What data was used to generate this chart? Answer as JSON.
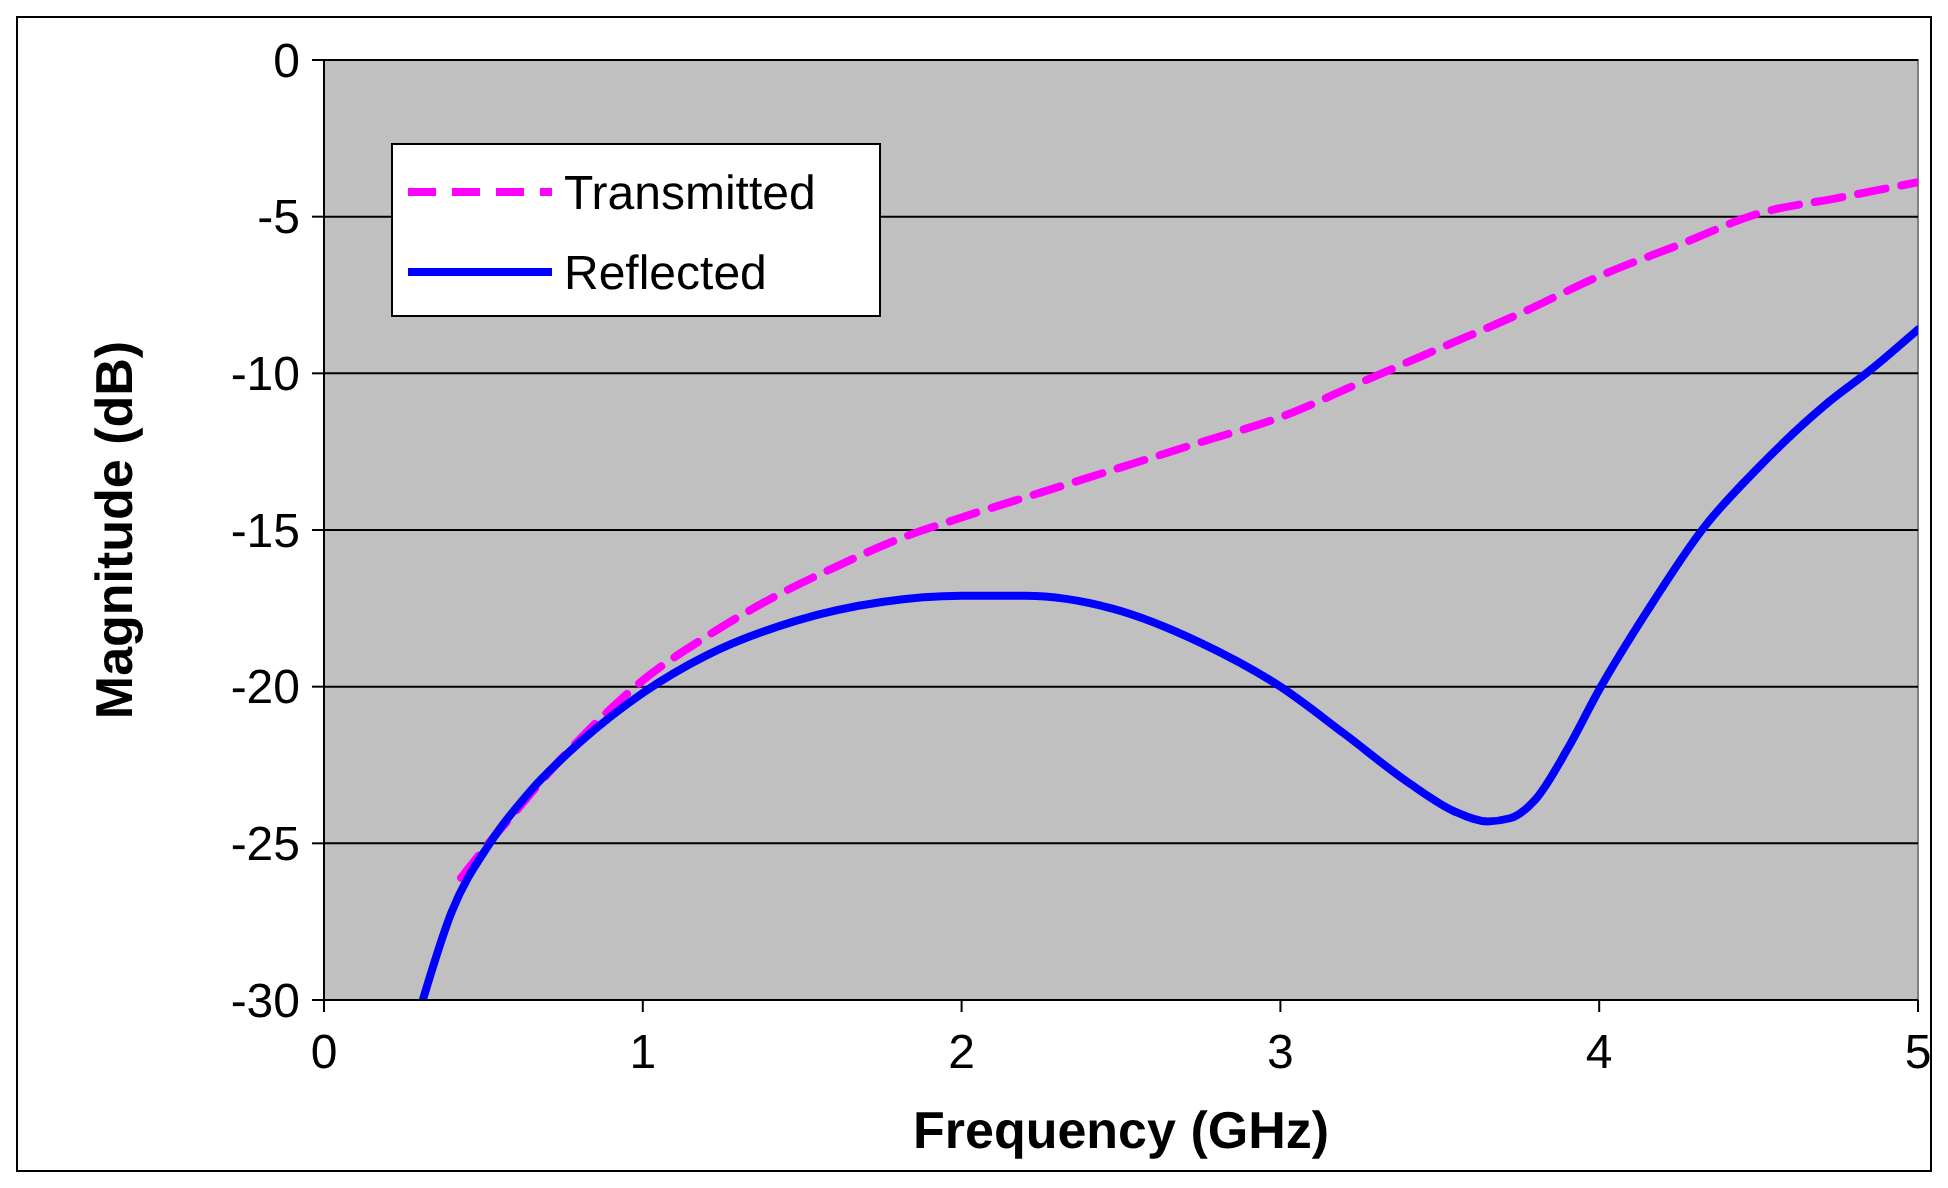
{
  "chart_data": {
    "type": "line",
    "xlabel": "Frequency (GHz)",
    "ylabel": "Magnitude (dB)",
    "xlim": [
      0,
      5
    ],
    "xticks": [
      0,
      1,
      2,
      3,
      4,
      5
    ],
    "ylim": [
      -30,
      0
    ],
    "yticks": [
      -30,
      -25,
      -20,
      -15,
      -10,
      -5,
      0
    ],
    "grid": "y",
    "legend": "top left",
    "series": [
      {
        "name": "Transmitted",
        "color": "#ff00ff",
        "line_style": "dashed",
        "x": [
          0.43,
          0.5,
          0.6,
          0.7,
          0.8,
          0.9,
          1,
          1.2,
          1.4,
          1.6,
          1.8,
          2,
          2.25,
          2.5,
          2.75,
          3,
          3.25,
          3.5,
          3.75,
          4,
          4.25,
          4.5,
          4.75,
          5
        ],
        "values": [
          -26.1,
          -25.2,
          -24,
          -22.8,
          -21.7,
          -20.7,
          -19.8,
          -18.4,
          -17.2,
          -16.2,
          -15.3,
          -14.6,
          -13.8,
          -13,
          -12.2,
          -11.4,
          -10.3,
          -9.2,
          -8.1,
          -6.9,
          -5.9,
          -4.9,
          -4.4,
          -3.9
        ]
      },
      {
        "name": "Reflected",
        "color": "#0000ff",
        "line_style": "solid",
        "x": [
          0.31,
          0.4,
          0.52,
          0.65,
          0.8,
          1,
          1.2,
          1.48,
          1.75,
          2,
          2.2,
          2.47,
          2.75,
          3,
          3.2,
          3.4,
          3.55,
          3.65,
          3.72,
          3.8,
          3.9,
          4,
          4.15,
          4.33,
          4.5,
          4.71,
          4.85,
          5
        ],
        "values": [
          -30,
          -27.2,
          -25,
          -23.3,
          -21.8,
          -20.2,
          -19,
          -17.9,
          -17.3,
          -17.1,
          -17.1,
          -17.5,
          -18.6,
          -20,
          -21.5,
          -23.05,
          -24,
          -24.3,
          -24.2,
          -23.6,
          -22,
          -20.1,
          -17.6,
          -14.9,
          -13,
          -11,
          -9.9,
          -8.6
        ]
      }
    ]
  }
}
